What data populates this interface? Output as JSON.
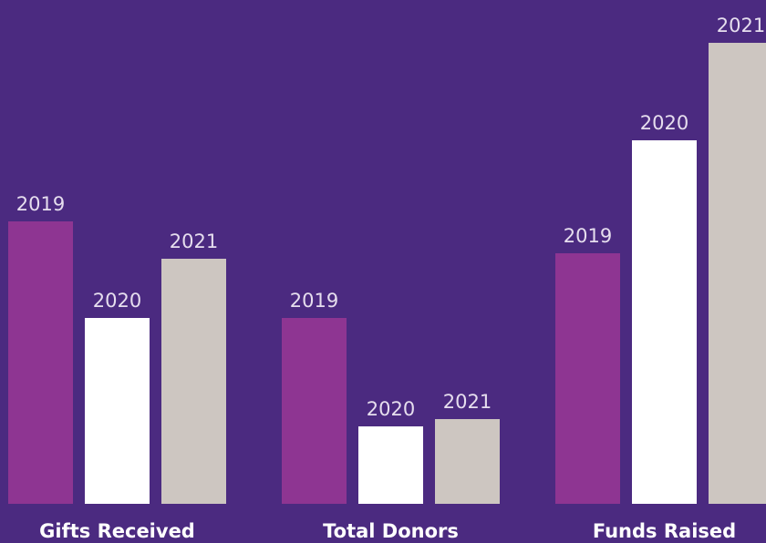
{
  "chart_data": {
    "type": "bar",
    "categories": [
      "Gifts Received",
      "Total Donors",
      "Funds Raised"
    ],
    "series": [
      {
        "name": "2019",
        "color": "#8e3592",
        "values": [
          310,
          204,
          275
        ]
      },
      {
        "name": "2020",
        "color": "#ffffff",
        "values": [
          204,
          85,
          399
        ]
      },
      {
        "name": "2021",
        "color": "#cdc6c1",
        "values": [
          269,
          93,
          506
        ]
      }
    ]
  }
}
